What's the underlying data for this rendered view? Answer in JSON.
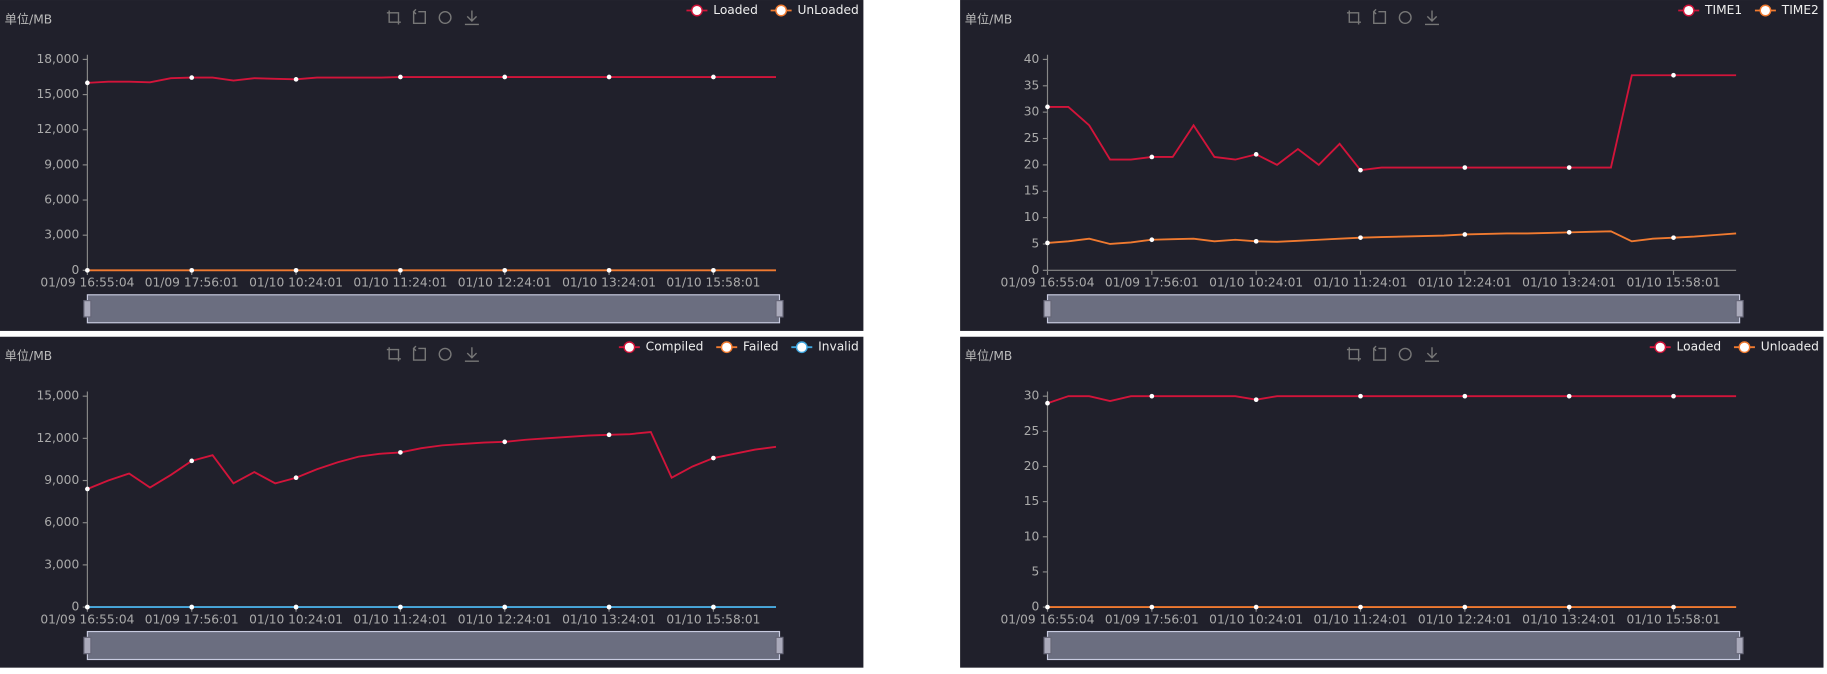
{
  "chart_data": [
    {
      "type": "line",
      "y_axis_label": "单位/MB",
      "categories": [
        "01/09 16:55:04",
        null,
        null,
        null,
        null,
        "01/09 17:56:01",
        null,
        null,
        null,
        null,
        "01/10 10:24:01",
        null,
        null,
        null,
        null,
        "01/10 11:24:01",
        null,
        null,
        null,
        null,
        "01/10 12:24:01",
        null,
        null,
        null,
        null,
        "01/10 13:24:01",
        null,
        null,
        null,
        null,
        "01/10 15:58:01",
        null,
        null,
        null
      ],
      "series": [
        {
          "name": "Loaded",
          "color": "#d2143a",
          "values": [
            16000,
            16100,
            16100,
            16050,
            16400,
            16450,
            16450,
            16200,
            16400,
            16350,
            16300,
            16450,
            16450,
            16450,
            16450,
            16500,
            16500,
            16500,
            16500,
            16500,
            16500,
            16500,
            16500,
            16500,
            16500,
            16500,
            16500,
            16500,
            16500,
            16500,
            16500,
            16500,
            16500,
            16500
          ]
        },
        {
          "name": "UnLoaded",
          "color": "#f07a30",
          "values": [
            0,
            0,
            0,
            0,
            0,
            0,
            0,
            0,
            0,
            0,
            0,
            0,
            0,
            0,
            0,
            0,
            0,
            0,
            0,
            0,
            0,
            0,
            0,
            0,
            0,
            0,
            0,
            0,
            0,
            0,
            0,
            0,
            0,
            0
          ]
        }
      ],
      "ylim": [
        0,
        18000
      ],
      "yticks": [
        0,
        {
          "value": 3000,
          "label": "3,000"
        },
        {
          "value": 6000,
          "label": "6,000"
        },
        {
          "value": 9000,
          "label": "9,000"
        },
        {
          "value": 12000,
          "label": "12,000"
        },
        {
          "value": 15000,
          "label": "15,000"
        },
        {
          "value": 18000,
          "label": "18,000"
        }
      ]
    },
    {
      "type": "line",
      "y_axis_label": "单位/MB",
      "categories": [
        "01/09 16:55:04",
        null,
        null,
        null,
        null,
        "01/09 17:56:01",
        null,
        null,
        null,
        null,
        "01/10 10:24:01",
        null,
        null,
        null,
        null,
        "01/10 11:24:01",
        null,
        null,
        null,
        null,
        "01/10 12:24:01",
        null,
        null,
        null,
        null,
        "01/10 13:24:01",
        null,
        null,
        null,
        null,
        "01/10 15:58:01",
        null,
        null,
        null
      ],
      "series": [
        {
          "name": "TIME1",
          "color": "#d2143a",
          "values": [
            31,
            31,
            27.5,
            21,
            21,
            21.5,
            21.5,
            27.5,
            21.5,
            21,
            22,
            20,
            23,
            20,
            24,
            19,
            19.5,
            19.5,
            19.5,
            19.5,
            19.5,
            19.5,
            19.5,
            19.5,
            19.5,
            19.5,
            19.5,
            19.5,
            37,
            37,
            37,
            37,
            37,
            37
          ]
        },
        {
          "name": "TIME2",
          "color": "#f07a30",
          "values": [
            5.2,
            5.5,
            6,
            5,
            5.3,
            5.8,
            5.9,
            6,
            5.5,
            5.8,
            5.5,
            5.4,
            5.6,
            5.8,
            6,
            6.2,
            6.3,
            6.4,
            6.5,
            6.6,
            6.8,
            6.9,
            7,
            7,
            7.1,
            7.2,
            7.3,
            7.4,
            5.5,
            6,
            6.2,
            6.4,
            6.7,
            7
          ]
        }
      ],
      "ylim": [
        0,
        40
      ],
      "yticks": [
        0,
        5,
        10,
        15,
        20,
        25,
        30,
        35,
        40
      ]
    },
    {
      "type": "line",
      "y_axis_label": "单位/MB",
      "categories": [
        "01/09 16:55:04",
        null,
        null,
        null,
        null,
        "01/09 17:56:01",
        null,
        null,
        null,
        null,
        "01/10 10:24:01",
        null,
        null,
        null,
        null,
        "01/10 11:24:01",
        null,
        null,
        null,
        null,
        "01/10 12:24:01",
        null,
        null,
        null,
        null,
        "01/10 13:24:01",
        null,
        null,
        null,
        null,
        "01/10 15:58:01",
        null,
        null,
        null
      ],
      "series": [
        {
          "name": "Compiled",
          "color": "#d2143a",
          "values": [
            8400,
            9000,
            9500,
            8500,
            9400,
            10400,
            10800,
            8800,
            9600,
            8800,
            9200,
            9800,
            10300,
            10700,
            10900,
            11000,
            11300,
            11500,
            11600,
            11700,
            11750,
            11900,
            12000,
            12100,
            12200,
            12250,
            12300,
            12450,
            9200,
            10000,
            10600,
            10900,
            11200,
            11400
          ]
        },
        {
          "name": "Failed",
          "color": "#f07a30",
          "values": [
            0,
            0,
            0,
            0,
            0,
            0,
            0,
            0,
            0,
            0,
            0,
            0,
            0,
            0,
            0,
            0,
            0,
            0,
            0,
            0,
            0,
            0,
            0,
            0,
            0,
            0,
            0,
            0,
            0,
            0,
            0,
            0,
            0,
            0
          ]
        },
        {
          "name": "Invalid",
          "color": "#3fa7e0",
          "values": [
            0,
            0,
            0,
            0,
            0,
            0,
            0,
            0,
            0,
            0,
            0,
            0,
            0,
            0,
            0,
            0,
            0,
            0,
            0,
            0,
            0,
            0,
            0,
            0,
            0,
            0,
            0,
            0,
            0,
            0,
            0,
            0,
            0,
            0
          ]
        }
      ],
      "ylim": [
        0,
        15000
      ],
      "yticks": [
        0,
        {
          "value": 3000,
          "label": "3,000"
        },
        {
          "value": 6000,
          "label": "6,000"
        },
        {
          "value": 9000,
          "label": "9,000"
        },
        {
          "value": 12000,
          "label": "12,000"
        },
        {
          "value": 15000,
          "label": "15,000"
        }
      ]
    },
    {
      "type": "line",
      "y_axis_label": "单位/MB",
      "categories": [
        "01/09 16:55:04",
        null,
        null,
        null,
        null,
        "01/09 17:56:01",
        null,
        null,
        null,
        null,
        "01/10 10:24:01",
        null,
        null,
        null,
        null,
        "01/10 11:24:01",
        null,
        null,
        null,
        null,
        "01/10 12:24:01",
        null,
        null,
        null,
        null,
        "01/10 13:24:01",
        null,
        null,
        null,
        null,
        "01/10 15:58:01",
        null,
        null,
        null
      ],
      "series": [
        {
          "name": "Loaded",
          "color": "#d2143a",
          "values": [
            29,
            30,
            30,
            29.3,
            30,
            30,
            30,
            30,
            30,
            30,
            29.5,
            30,
            30,
            30,
            30,
            30,
            30,
            30,
            30,
            30,
            30,
            30,
            30,
            30,
            30,
            30,
            30,
            30,
            30,
            30,
            30,
            30,
            30,
            30
          ]
        },
        {
          "name": "Unloaded",
          "color": "#f07a30",
          "values": [
            0,
            0,
            0,
            0,
            0,
            0,
            0,
            0,
            0,
            0,
            0,
            0,
            0,
            0,
            0,
            0,
            0,
            0,
            0,
            0,
            0,
            0,
            0,
            0,
            0,
            0,
            0,
            0,
            0,
            0,
            0,
            0,
            0,
            0
          ]
        }
      ],
      "ylim": [
        0,
        30
      ],
      "yticks": [
        0,
        5,
        10,
        15,
        20,
        25,
        30
      ]
    }
  ]
}
